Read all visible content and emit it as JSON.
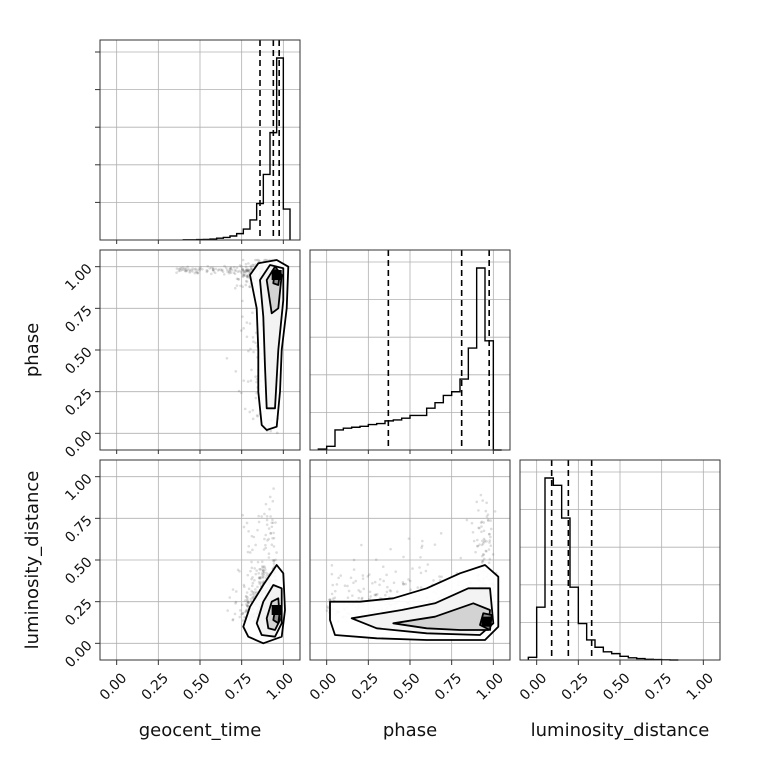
{
  "chart_data": {
    "type": "corner",
    "parameters": [
      "geocent_time",
      "phase",
      "luminosity_distance"
    ],
    "axis_range": [
      -0.1,
      1.1
    ],
    "ticks": [
      0.0,
      0.25,
      0.5,
      0.75,
      1.0
    ],
    "tick_labels": [
      "0.00",
      "0.25",
      "0.50",
      "0.75",
      "1.00"
    ],
    "grid": true,
    "histograms": [
      {
        "parameter": "geocent_time",
        "quantiles": [
          0.86,
          0.94,
          0.975
        ],
        "bin_edges": [
          0.4,
          0.44,
          0.48,
          0.52,
          0.56,
          0.6,
          0.64,
          0.68,
          0.72,
          0.76,
          0.8,
          0.84,
          0.88,
          0.92,
          0.96,
          1.0,
          1.04
        ],
        "counts": [
          1,
          1,
          2,
          3,
          5,
          10,
          14,
          22,
          35,
          60,
          110,
          200,
          360,
          590,
          1000,
          170
        ]
      },
      {
        "parameter": "phase",
        "quantiles": [
          0.37,
          0.81,
          0.975
        ],
        "bin_edges": [
          -0.05,
          0.0,
          0.05,
          0.1,
          0.15,
          0.2,
          0.25,
          0.3,
          0.35,
          0.4,
          0.45,
          0.5,
          0.55,
          0.6,
          0.65,
          0.7,
          0.75,
          0.8,
          0.85,
          0.9,
          0.95,
          1.0,
          1.05
        ],
        "counts": [
          5,
          20,
          110,
          120,
          125,
          130,
          140,
          145,
          160,
          165,
          175,
          190,
          190,
          230,
          260,
          300,
          320,
          390,
          560,
          1000,
          600,
          0
        ]
      },
      {
        "parameter": "luminosity_distance",
        "quantiles": [
          0.09,
          0.19,
          0.33
        ],
        "bin_edges": [
          -0.05,
          0.0,
          0.05,
          0.1,
          0.15,
          0.2,
          0.25,
          0.3,
          0.35,
          0.4,
          0.45,
          0.5,
          0.55,
          0.6,
          0.65,
          0.7,
          0.75,
          0.8,
          0.85
        ],
        "counts": [
          15,
          290,
          1000,
          960,
          780,
          400,
          200,
          110,
          70,
          45,
          35,
          20,
          12,
          8,
          4,
          2,
          1,
          0
        ]
      }
    ],
    "contour_panels": [
      {
        "x": "geocent_time",
        "y": "phase",
        "peak": [
          0.96,
          0.95
        ],
        "levels": [
          [
            [
              0.87,
              0.05
            ],
            [
              0.85,
              0.25
            ],
            [
              0.85,
              0.5
            ],
            [
              0.84,
              0.75
            ],
            [
              0.8,
              0.95
            ],
            [
              0.85,
              1.02
            ],
            [
              0.96,
              1.04
            ],
            [
              1.03,
              1.0
            ],
            [
              1.02,
              0.75
            ],
            [
              0.99,
              0.5
            ],
            [
              0.98,
              0.25
            ],
            [
              0.96,
              0.04
            ],
            [
              0.9,
              0.02
            ]
          ],
          [
            [
              0.9,
              0.15
            ],
            [
              0.89,
              0.4
            ],
            [
              0.88,
              0.7
            ],
            [
              0.86,
              0.92
            ],
            [
              0.92,
              1.01
            ],
            [
              1.0,
              0.99
            ],
            [
              1.0,
              0.8
            ],
            [
              0.97,
              0.5
            ],
            [
              0.95,
              0.15
            ]
          ],
          [
            [
              0.93,
              0.72
            ],
            [
              0.9,
              0.92
            ],
            [
              0.95,
              1.0
            ],
            [
              0.99,
              0.95
            ],
            [
              0.97,
              0.75
            ]
          ],
          [
            [
              0.94,
              0.9
            ],
            [
              0.95,
              0.98
            ],
            [
              0.98,
              0.96
            ],
            [
              0.97,
              0.89
            ]
          ]
        ]
      },
      {
        "x": "geocent_time",
        "y": "luminosity_distance",
        "peak": [
          0.96,
          0.2
        ],
        "levels": [
          [
            [
              0.76,
              0.1
            ],
            [
              0.8,
              0.22
            ],
            [
              0.88,
              0.35
            ],
            [
              0.96,
              0.47
            ],
            [
              1.0,
              0.42
            ],
            [
              1.01,
              0.2
            ],
            [
              0.99,
              0.04
            ],
            [
              0.88,
              0.0
            ],
            [
              0.79,
              0.04
            ]
          ],
          [
            [
              0.84,
              0.12
            ],
            [
              0.88,
              0.25
            ],
            [
              0.94,
              0.35
            ],
            [
              0.99,
              0.33
            ],
            [
              0.99,
              0.12
            ],
            [
              0.95,
              0.04
            ],
            [
              0.87,
              0.05
            ]
          ],
          [
            [
              0.9,
              0.15
            ],
            [
              0.93,
              0.25
            ],
            [
              0.97,
              0.27
            ],
            [
              0.98,
              0.14
            ],
            [
              0.95,
              0.08
            ],
            [
              0.91,
              0.09
            ]
          ],
          [
            [
              0.94,
              0.14
            ],
            [
              0.95,
              0.2
            ],
            [
              0.98,
              0.2
            ],
            [
              0.97,
              0.12
            ]
          ]
        ]
      },
      {
        "x": "phase",
        "y": "luminosity_distance",
        "peak": [
          0.96,
          0.13
        ],
        "levels": [
          [
            [
              0.02,
              0.25
            ],
            [
              0.2,
              0.25
            ],
            [
              0.4,
              0.27
            ],
            [
              0.6,
              0.33
            ],
            [
              0.8,
              0.42
            ],
            [
              0.95,
              0.47
            ],
            [
              1.03,
              0.4
            ],
            [
              1.03,
              0.1
            ],
            [
              0.95,
              0.02
            ],
            [
              0.6,
              0.02
            ],
            [
              0.3,
              0.03
            ],
            [
              0.05,
              0.05
            ],
            [
              0.02,
              0.14
            ]
          ],
          [
            [
              0.15,
              0.15
            ],
            [
              0.45,
              0.2
            ],
            [
              0.65,
              0.24
            ],
            [
              0.85,
              0.33
            ],
            [
              0.98,
              0.33
            ],
            [
              1.0,
              0.12
            ],
            [
              0.92,
              0.05
            ],
            [
              0.6,
              0.06
            ],
            [
              0.3,
              0.09
            ]
          ],
          [
            [
              0.4,
              0.12
            ],
            [
              0.65,
              0.16
            ],
            [
              0.88,
              0.24
            ],
            [
              0.98,
              0.2
            ],
            [
              0.97,
              0.08
            ],
            [
              0.8,
              0.08
            ],
            [
              0.6,
              0.09
            ]
          ],
          [
            [
              0.92,
              0.11
            ],
            [
              0.94,
              0.18
            ],
            [
              0.99,
              0.17
            ],
            [
              0.98,
              0.08
            ]
          ]
        ]
      }
    ]
  }
}
